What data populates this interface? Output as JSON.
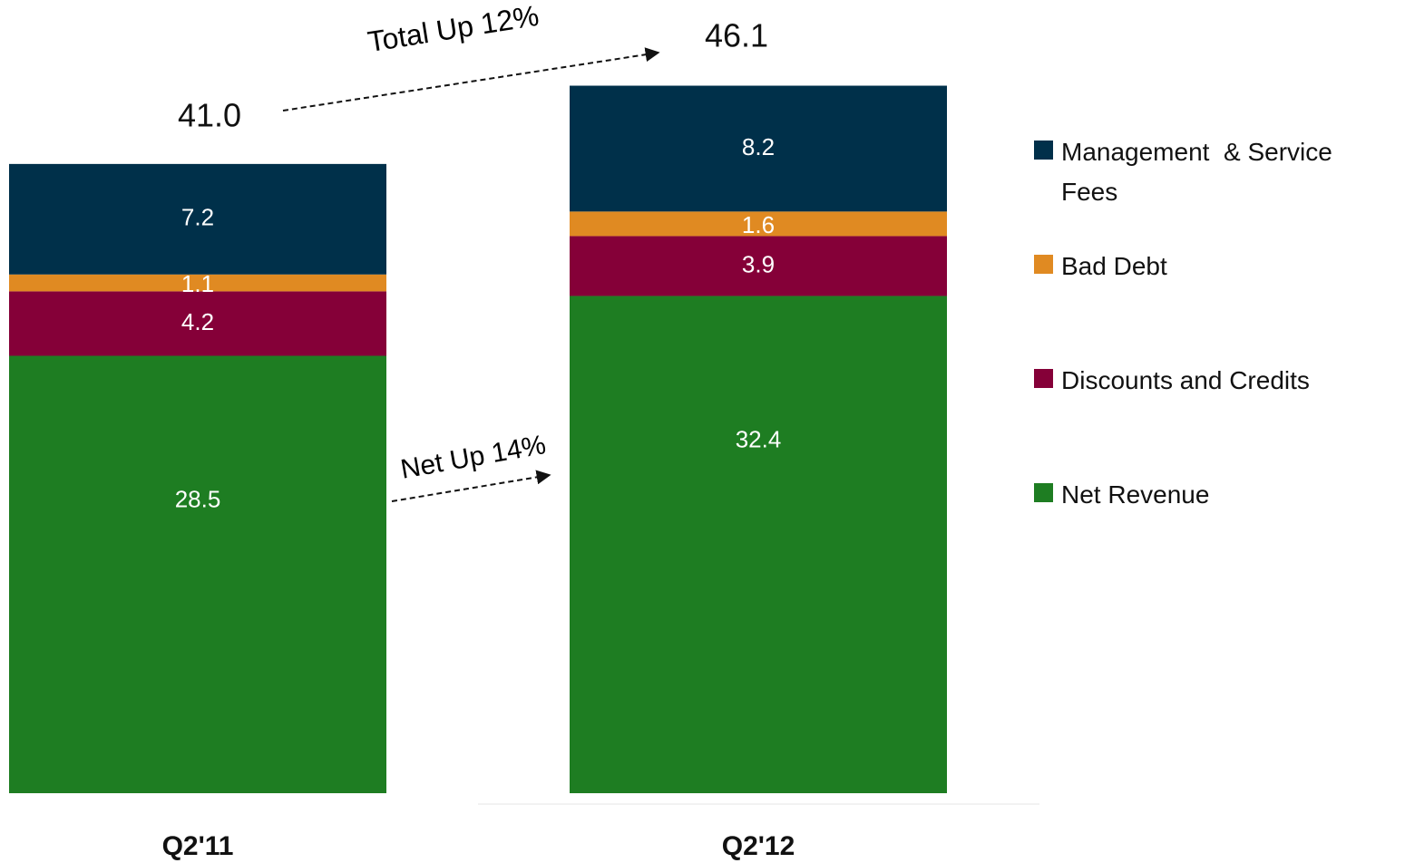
{
  "chart_data": {
    "type": "stacked-bar",
    "categories": [
      "Q2'11",
      "Q2'12"
    ],
    "series": [
      {
        "name": "Net Revenue",
        "color": "#1e7d22",
        "values": [
          28.5,
          32.4
        ]
      },
      {
        "name": "Discounts and Credits",
        "color": "#850038",
        "values": [
          4.2,
          3.9
        ]
      },
      {
        "name": "Bad Debt",
        "color": "#e08a22",
        "values": [
          1.1,
          1.6
        ]
      },
      {
        "name": "Management  & Service Fees",
        "color": "#00304a",
        "values": [
          7.2,
          8.2
        ]
      }
    ],
    "totals": [
      {
        "value": 41.0,
        "label": "41.0"
      },
      46.1
    ],
    "annotations": [
      "Total Up 12%",
      "Net Up 14%"
    ]
  }
}
